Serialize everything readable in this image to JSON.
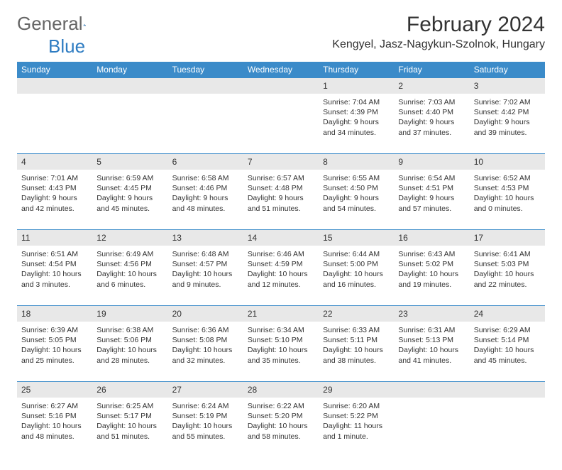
{
  "logo": {
    "text1": "General",
    "text2": "Blue"
  },
  "title": "February 2024",
  "location": "Kengyel, Jasz-Nagykun-Szolnok, Hungary",
  "colors": {
    "header_bg": "#3b8bc9",
    "header_text": "#ffffff",
    "numrow_bg": "#e8e8e8",
    "border": "#3b8bc9",
    "text": "#333333",
    "logo_gray": "#666666",
    "logo_blue": "#2e7cc2"
  },
  "day_names": [
    "Sunday",
    "Monday",
    "Tuesday",
    "Wednesday",
    "Thursday",
    "Friday",
    "Saturday"
  ],
  "weeks": [
    [
      null,
      null,
      null,
      null,
      {
        "n": "1",
        "sr": "7:04 AM",
        "ss": "4:39 PM",
        "dl": "9 hours and 34 minutes."
      },
      {
        "n": "2",
        "sr": "7:03 AM",
        "ss": "4:40 PM",
        "dl": "9 hours and 37 minutes."
      },
      {
        "n": "3",
        "sr": "7:02 AM",
        "ss": "4:42 PM",
        "dl": "9 hours and 39 minutes."
      }
    ],
    [
      {
        "n": "4",
        "sr": "7:01 AM",
        "ss": "4:43 PM",
        "dl": "9 hours and 42 minutes."
      },
      {
        "n": "5",
        "sr": "6:59 AM",
        "ss": "4:45 PM",
        "dl": "9 hours and 45 minutes."
      },
      {
        "n": "6",
        "sr": "6:58 AM",
        "ss": "4:46 PM",
        "dl": "9 hours and 48 minutes."
      },
      {
        "n": "7",
        "sr": "6:57 AM",
        "ss": "4:48 PM",
        "dl": "9 hours and 51 minutes."
      },
      {
        "n": "8",
        "sr": "6:55 AM",
        "ss": "4:50 PM",
        "dl": "9 hours and 54 minutes."
      },
      {
        "n": "9",
        "sr": "6:54 AM",
        "ss": "4:51 PM",
        "dl": "9 hours and 57 minutes."
      },
      {
        "n": "10",
        "sr": "6:52 AM",
        "ss": "4:53 PM",
        "dl": "10 hours and 0 minutes."
      }
    ],
    [
      {
        "n": "11",
        "sr": "6:51 AM",
        "ss": "4:54 PM",
        "dl": "10 hours and 3 minutes."
      },
      {
        "n": "12",
        "sr": "6:49 AM",
        "ss": "4:56 PM",
        "dl": "10 hours and 6 minutes."
      },
      {
        "n": "13",
        "sr": "6:48 AM",
        "ss": "4:57 PM",
        "dl": "10 hours and 9 minutes."
      },
      {
        "n": "14",
        "sr": "6:46 AM",
        "ss": "4:59 PM",
        "dl": "10 hours and 12 minutes."
      },
      {
        "n": "15",
        "sr": "6:44 AM",
        "ss": "5:00 PM",
        "dl": "10 hours and 16 minutes."
      },
      {
        "n": "16",
        "sr": "6:43 AM",
        "ss": "5:02 PM",
        "dl": "10 hours and 19 minutes."
      },
      {
        "n": "17",
        "sr": "6:41 AM",
        "ss": "5:03 PM",
        "dl": "10 hours and 22 minutes."
      }
    ],
    [
      {
        "n": "18",
        "sr": "6:39 AM",
        "ss": "5:05 PM",
        "dl": "10 hours and 25 minutes."
      },
      {
        "n": "19",
        "sr": "6:38 AM",
        "ss": "5:06 PM",
        "dl": "10 hours and 28 minutes."
      },
      {
        "n": "20",
        "sr": "6:36 AM",
        "ss": "5:08 PM",
        "dl": "10 hours and 32 minutes."
      },
      {
        "n": "21",
        "sr": "6:34 AM",
        "ss": "5:10 PM",
        "dl": "10 hours and 35 minutes."
      },
      {
        "n": "22",
        "sr": "6:33 AM",
        "ss": "5:11 PM",
        "dl": "10 hours and 38 minutes."
      },
      {
        "n": "23",
        "sr": "6:31 AM",
        "ss": "5:13 PM",
        "dl": "10 hours and 41 minutes."
      },
      {
        "n": "24",
        "sr": "6:29 AM",
        "ss": "5:14 PM",
        "dl": "10 hours and 45 minutes."
      }
    ],
    [
      {
        "n": "25",
        "sr": "6:27 AM",
        "ss": "5:16 PM",
        "dl": "10 hours and 48 minutes."
      },
      {
        "n": "26",
        "sr": "6:25 AM",
        "ss": "5:17 PM",
        "dl": "10 hours and 51 minutes."
      },
      {
        "n": "27",
        "sr": "6:24 AM",
        "ss": "5:19 PM",
        "dl": "10 hours and 55 minutes."
      },
      {
        "n": "28",
        "sr": "6:22 AM",
        "ss": "5:20 PM",
        "dl": "10 hours and 58 minutes."
      },
      {
        "n": "29",
        "sr": "6:20 AM",
        "ss": "5:22 PM",
        "dl": "11 hours and 1 minute."
      },
      null,
      null
    ]
  ],
  "labels": {
    "sunrise": "Sunrise:",
    "sunset": "Sunset:",
    "daylight": "Daylight:"
  }
}
